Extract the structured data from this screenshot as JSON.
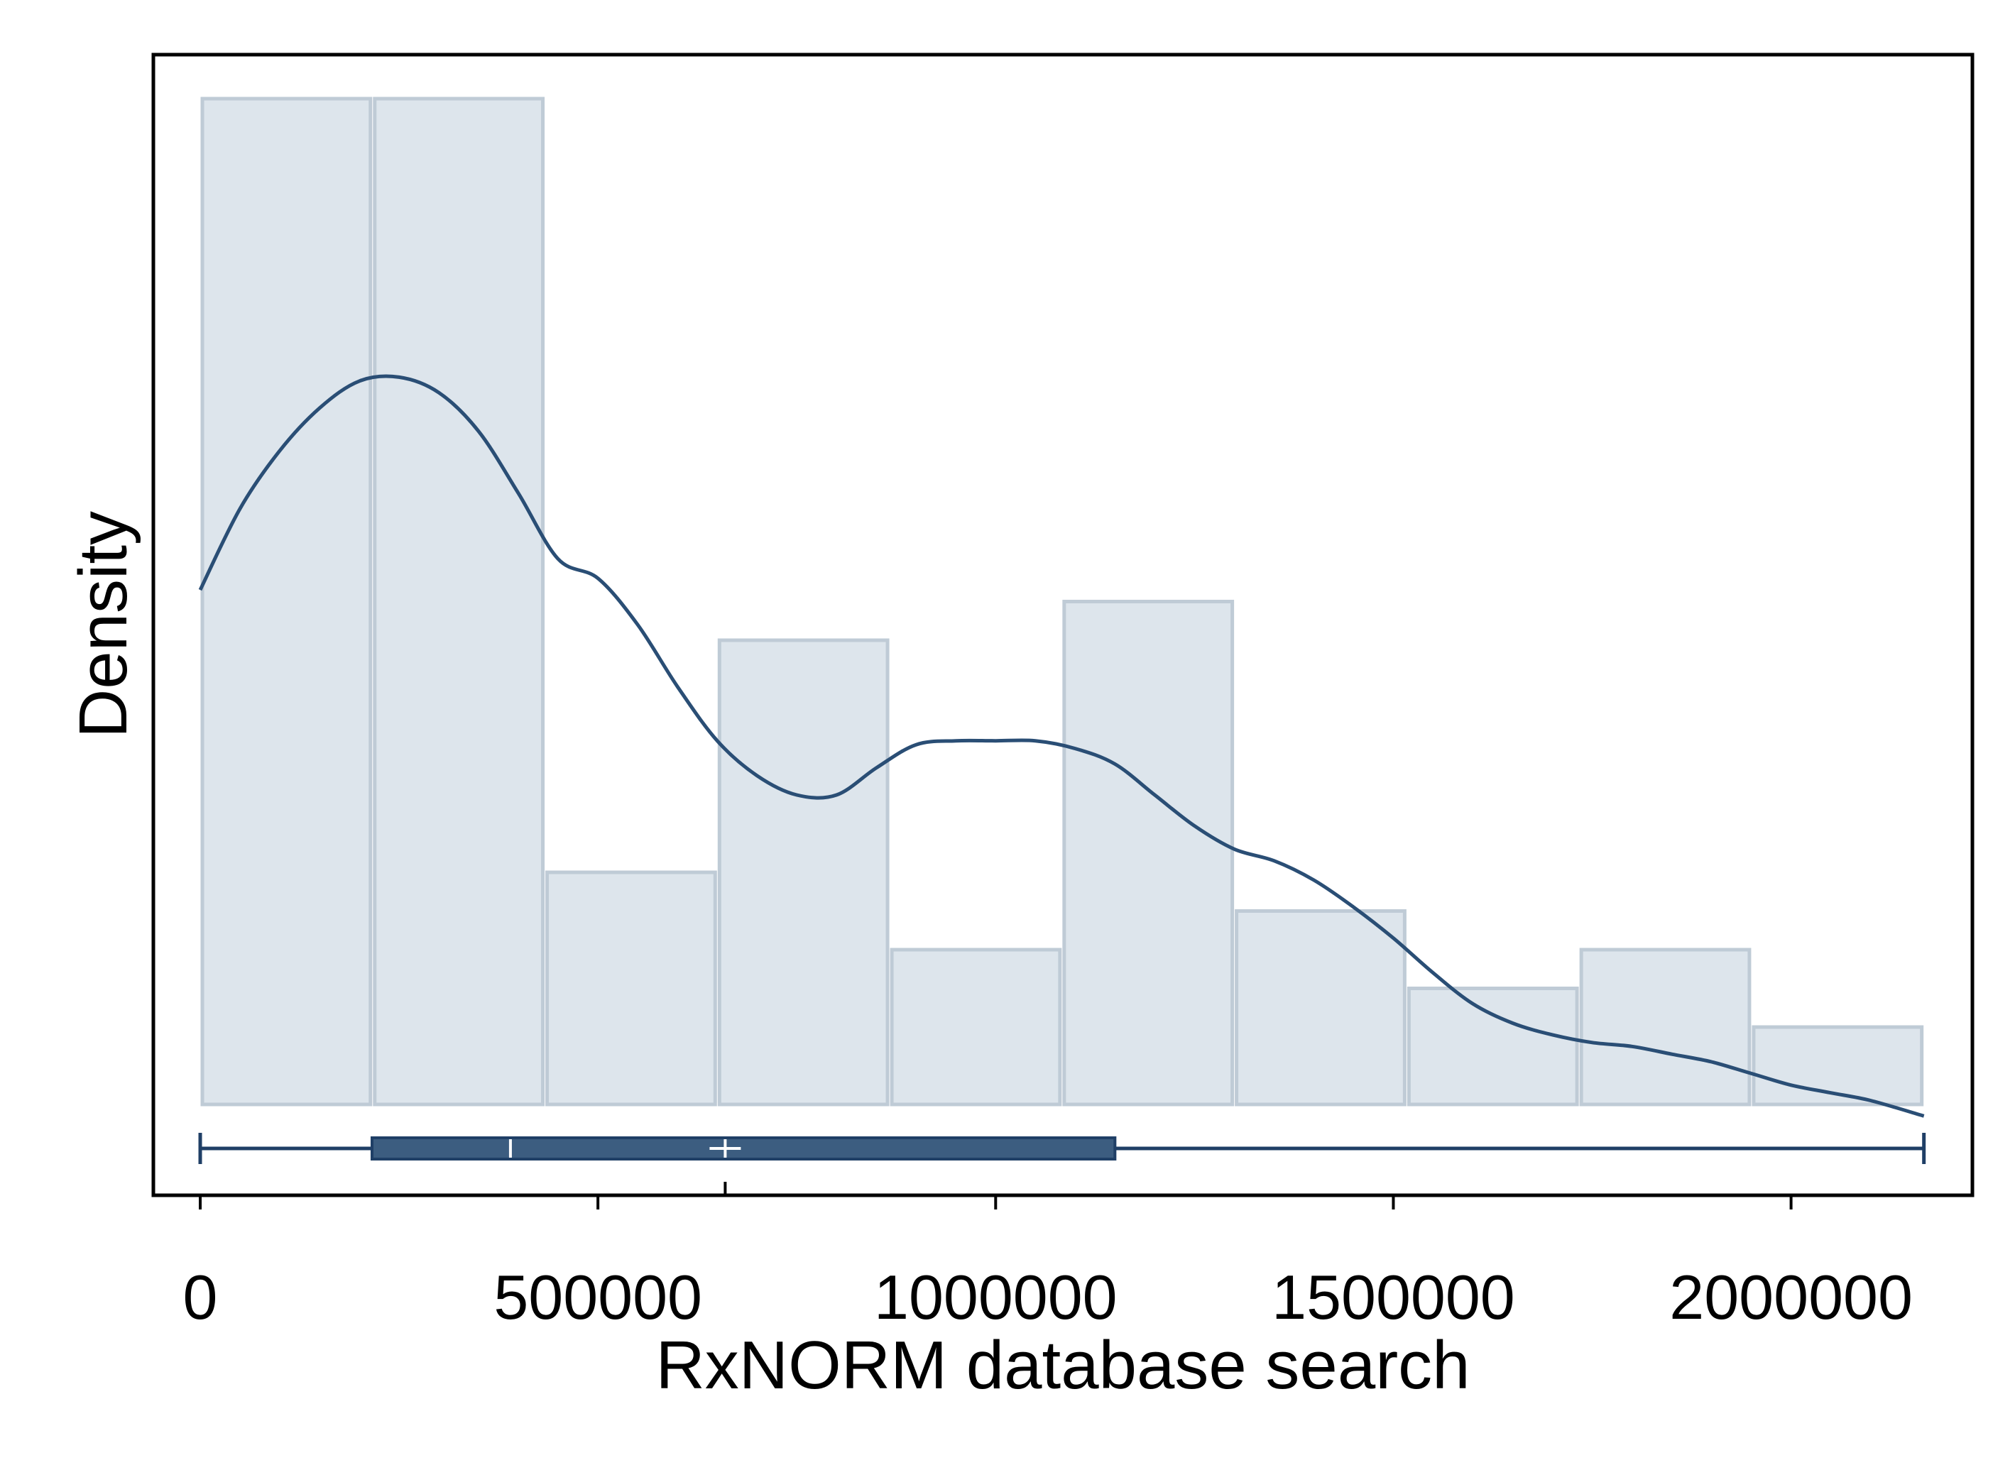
{
  "chart_data": {
    "type": "bar",
    "title": "",
    "xlabel": "RxNORM database search",
    "ylabel": "Density",
    "xlim": [
      -120000,
      2230000
    ],
    "xticks": [
      0,
      500000,
      1000000,
      1500000,
      2000000
    ],
    "xtick_labels": [
      "0",
      "500000",
      "1000000",
      "1500000",
      "2000000"
    ],
    "grid": false,
    "legend": "none",
    "histogram": {
      "bin_edges": [
        0,
        216700,
        433400,
        650100,
        866800,
        1083500,
        1300200,
        1516900,
        1733600,
        1950300,
        2167000
      ],
      "relative_heights": [
        26,
        26,
        6,
        12,
        4,
        13,
        5,
        3,
        4,
        2
      ]
    },
    "density_curve": {
      "x": [
        0,
        50000,
        100000,
        150000,
        200000,
        250000,
        300000,
        350000,
        400000,
        450000,
        500000,
        550000,
        600000,
        650000,
        700000,
        750000,
        800000,
        850000,
        900000,
        950000,
        1000000,
        1050000,
        1100000,
        1150000,
        1200000,
        1250000,
        1300000,
        1350000,
        1400000,
        1450000,
        1500000,
        1550000,
        1600000,
        1650000,
        1700000,
        1750000,
        1800000,
        1850000,
        1900000,
        1950000,
        2000000,
        2050000,
        2100000,
        2167000
      ],
      "relative_density": [
        13.3,
        15.4,
        16.9,
        18.0,
        18.7,
        18.8,
        18.4,
        17.4,
        15.8,
        14.1,
        13.6,
        12.4,
        10.8,
        9.4,
        8.5,
        8.0,
        8.0,
        8.7,
        9.3,
        9.4,
        9.4,
        9.4,
        9.2,
        8.8,
        8.0,
        7.2,
        6.6,
        6.3,
        5.8,
        5.1,
        4.3,
        3.4,
        2.6,
        2.1,
        1.8,
        1.6,
        1.5,
        1.3,
        1.1,
        0.8,
        0.5,
        0.3,
        0.1,
        -0.3
      ]
    },
    "box_plot": {
      "min": 0,
      "q1": 216000,
      "median": 390000,
      "mean": 660000,
      "q3": 1150000,
      "max": 2167000
    },
    "colors": {
      "bar_fill": "#dde5ec",
      "bar_edge": "#bfcbd6",
      "curve": "#2a4e75",
      "box_fill": "#3c5d80",
      "box_edge": "#1f3f66",
      "frame": "#000000"
    }
  }
}
